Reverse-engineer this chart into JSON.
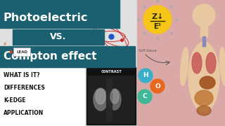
{
  "bg_left_color": "#e0e0e0",
  "bg_right_color": "#dba8a8",
  "teal_banner_color": "#1a6070",
  "title_line1": "Photoelectric",
  "title_line2": "VS.",
  "title_line3": "Compton effect",
  "title_color": "#ffffff",
  "menu_items": [
    "WHAT IS IT?",
    "DIFFERENCES",
    "K-EDGE",
    "APPLICATION"
  ],
  "menu_color": "#111111",
  "contrast_label": "CONTRAST",
  "contrast_bg": "#111111",
  "contrast_label_color": "#ffffff",
  "lead_text": "LEAD",
  "atom_orbit_color": "#cc2222",
  "atom_dot_color": "#2255cc",
  "zE_circle_color": "#f5c518",
  "soft_tissue_text": "Soft tissue",
  "H_circle_color": "#3ab0c8",
  "O_circle_color": "#e86820",
  "C_circle_color": "#40b898",
  "body_skin_color": "#e8c8a0",
  "body_outline_color": "#d4b090",
  "lung_color": "#c85858",
  "organ_color1": "#c07838",
  "organ_color2": "#a86028",
  "figsize": [
    3.2,
    1.8
  ],
  "dpi": 100
}
